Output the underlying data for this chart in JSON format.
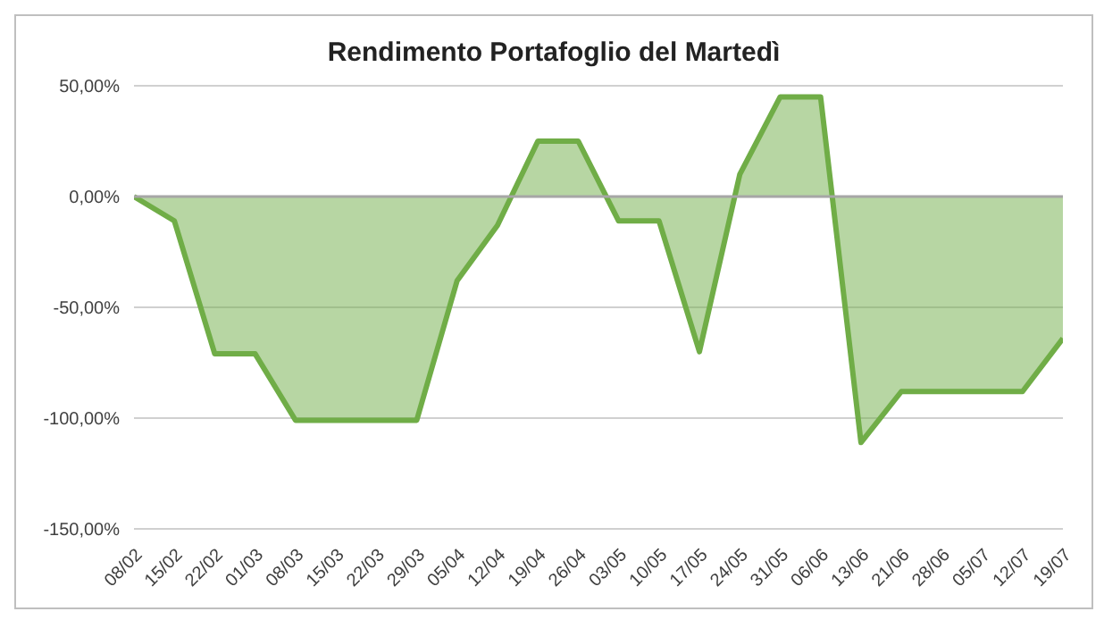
{
  "chart_data": {
    "type": "area",
    "title": "Rendimento Portafoglio del Martedì",
    "categories": [
      "08/02",
      "15/02",
      "22/02",
      "01/03",
      "08/03",
      "15/03",
      "22/03",
      "29/03",
      "05/04",
      "12/04",
      "19/04",
      "26/04",
      "03/05",
      "10/05",
      "17/05",
      "24/05",
      "31/05",
      "06/06",
      "13/06",
      "21/06",
      "28/06",
      "05/07",
      "12/07",
      "19/07"
    ],
    "series": [
      {
        "color": "#70ad47",
        "values": [
          0,
          -11,
          -71,
          -71,
          -101,
          -101,
          -101,
          -101,
          -38,
          -13,
          25,
          25,
          -11,
          -11,
          -70,
          10,
          45,
          45,
          -111,
          -88,
          -88,
          -88,
          -88,
          -64
        ]
      }
    ],
    "ylim": [
      -150,
      50
    ],
    "yticks": [
      {
        "value": -150,
        "label": "-150,00%"
      },
      {
        "value": -100,
        "label": "-100,00%"
      },
      {
        "value": -50,
        "label": "-50,00%"
      },
      {
        "value": 0,
        "label": "0,00%"
      },
      {
        "value": 50,
        "label": "50,00%"
      }
    ],
    "ref_lines": [
      {
        "axis": "y",
        "value": 0,
        "color": "#a6a6a6"
      }
    ],
    "grid": "y",
    "legend": false,
    "marker": "none",
    "line_style": "solid"
  }
}
